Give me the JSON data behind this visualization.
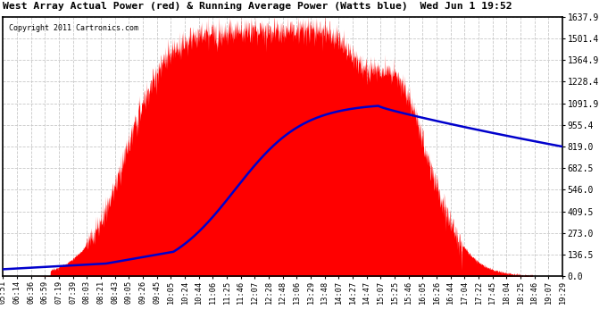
{
  "title": "West Array Actual Power (red) & Running Average Power (Watts blue)  Wed Jun 1 19:52",
  "copyright": "Copyright 2011 Cartronics.com",
  "bg_color": "#ffffff",
  "plot_bg_color": "#ffffff",
  "grid_color": "#c8c8c8",
  "yticks": [
    0.0,
    136.5,
    273.0,
    409.5,
    546.0,
    682.5,
    819.0,
    955.4,
    1091.9,
    1228.4,
    1364.9,
    1501.4,
    1637.9
  ],
  "ymax": 1637.9,
  "ymin": 0.0,
  "tick_labels": [
    "05:51",
    "06:14",
    "06:36",
    "06:59",
    "07:19",
    "07:39",
    "08:03",
    "08:21",
    "08:43",
    "09:05",
    "09:26",
    "09:45",
    "10:05",
    "10:24",
    "10:44",
    "11:06",
    "11:25",
    "11:46",
    "12:07",
    "12:28",
    "12:48",
    "13:06",
    "13:29",
    "13:48",
    "14:07",
    "14:27",
    "14:47",
    "15:07",
    "15:25",
    "15:46",
    "16:05",
    "16:26",
    "16:44",
    "17:04",
    "17:22",
    "17:45",
    "18:04",
    "18:25",
    "18:46",
    "19:07",
    "19:29"
  ],
  "red_color": "#ff0000",
  "blue_color": "#0000cc"
}
